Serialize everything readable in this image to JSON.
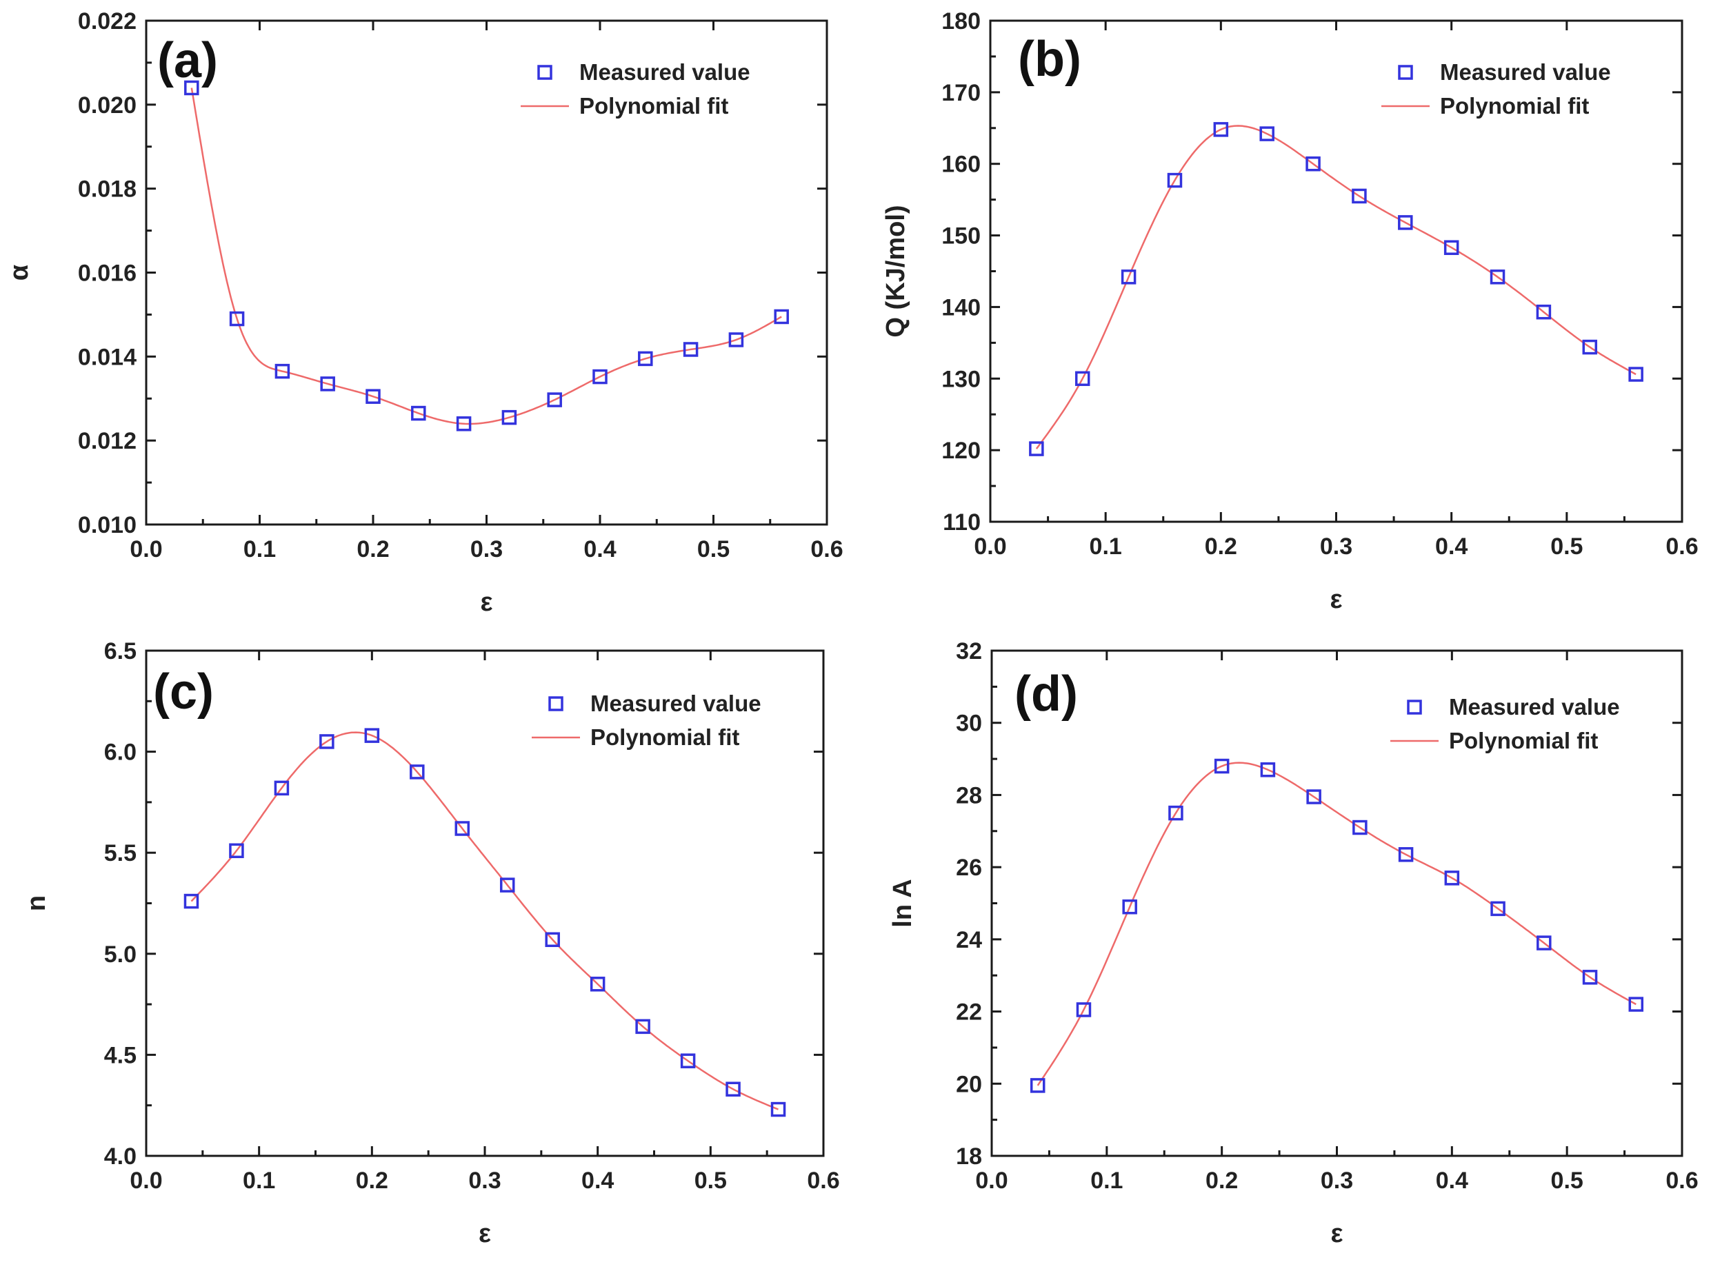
{
  "colors": {
    "marker": "#3333dd",
    "fit": "#ee6a6a",
    "axis": "#1a1a1a"
  },
  "legend": {
    "measured": "Measured value",
    "fit": "Polynomial fit"
  },
  "chart_data": [
    {
      "type": "scatter",
      "panel": "(a)",
      "xlabel": "ε",
      "ylabel": "α",
      "xlim": [
        0.0,
        0.6
      ],
      "ylim": [
        0.01,
        0.022
      ],
      "xticks": [
        "0.0",
        "0.1",
        "0.2",
        "0.3",
        "0.4",
        "0.5",
        "0.6"
      ],
      "yticks": [
        "0.010",
        "0.012",
        "0.014",
        "0.016",
        "0.018",
        "0.020",
        "0.022"
      ],
      "x": [
        0.04,
        0.08,
        0.12,
        0.16,
        0.2,
        0.24,
        0.28,
        0.32,
        0.36,
        0.4,
        0.44,
        0.48,
        0.52,
        0.56
      ],
      "series": [
        {
          "name": "Measured value",
          "values": [
            0.0204,
            0.0149,
            0.01365,
            0.01335,
            0.01305,
            0.01265,
            0.0124,
            0.01255,
            0.01297,
            0.01352,
            0.01395,
            0.01417,
            0.0144,
            0.01495
          ]
        },
        {
          "name": "Polynomial fit",
          "values": [
            0.0204,
            0.0149,
            0.01365,
            0.01335,
            0.01305,
            0.01265,
            0.0124,
            0.01255,
            0.01297,
            0.01352,
            0.01395,
            0.01417,
            0.0144,
            0.01495
          ]
        }
      ],
      "legend_position": "top-right"
    },
    {
      "type": "scatter",
      "panel": "(b)",
      "xlabel": "ε",
      "ylabel": "Q (KJ/mol)",
      "xlim": [
        0.0,
        0.6
      ],
      "ylim": [
        110,
        180
      ],
      "xticks": [
        "0.0",
        "0.1",
        "0.2",
        "0.3",
        "0.4",
        "0.5",
        "0.6"
      ],
      "yticks": [
        "110",
        "120",
        "130",
        "140",
        "150",
        "160",
        "170",
        "180"
      ],
      "x": [
        0.04,
        0.08,
        0.12,
        0.16,
        0.2,
        0.24,
        0.28,
        0.32,
        0.36,
        0.4,
        0.44,
        0.48,
        0.52,
        0.56
      ],
      "series": [
        {
          "name": "Measured value",
          "values": [
            120.2,
            130.0,
            144.2,
            157.7,
            164.8,
            164.2,
            160.0,
            155.5,
            151.8,
            148.3,
            144.2,
            139.3,
            134.4,
            130.6
          ]
        },
        {
          "name": "Polynomial fit",
          "values": [
            120.2,
            130.0,
            144.2,
            157.7,
            164.8,
            164.2,
            160.0,
            155.5,
            151.8,
            148.3,
            144.2,
            139.3,
            134.4,
            130.6
          ]
        }
      ],
      "legend_position": "top-right"
    },
    {
      "type": "scatter",
      "panel": "(c)",
      "xlabel": "ε",
      "ylabel": "n",
      "xlim": [
        0.0,
        0.6
      ],
      "ylim": [
        4.0,
        6.5
      ],
      "xticks": [
        "0.0",
        "0.1",
        "0.2",
        "0.3",
        "0.4",
        "0.5",
        "0.6"
      ],
      "yticks": [
        "4.0",
        "4.5",
        "5.0",
        "5.5",
        "6.0",
        "6.5"
      ],
      "x": [
        0.04,
        0.08,
        0.12,
        0.16,
        0.2,
        0.24,
        0.28,
        0.32,
        0.36,
        0.4,
        0.44,
        0.48,
        0.52,
        0.56
      ],
      "series": [
        {
          "name": "Measured value",
          "values": [
            5.26,
            5.51,
            5.82,
            6.05,
            6.08,
            5.9,
            5.62,
            5.34,
            5.07,
            4.85,
            4.64,
            4.47,
            4.33,
            4.23
          ]
        },
        {
          "name": "Polynomial fit",
          "values": [
            5.26,
            5.51,
            5.82,
            6.05,
            6.08,
            5.9,
            5.62,
            5.34,
            5.07,
            4.85,
            4.64,
            4.47,
            4.33,
            4.23
          ]
        }
      ],
      "legend_position": "top-right"
    },
    {
      "type": "scatter",
      "panel": "(d)",
      "xlabel": "ε",
      "ylabel": "ln A",
      "xlim": [
        0.0,
        0.6
      ],
      "ylim": [
        18,
        32
      ],
      "xticks": [
        "0.0",
        "0.1",
        "0.2",
        "0.3",
        "0.4",
        "0.5",
        "0.6"
      ],
      "yticks": [
        "18",
        "20",
        "22",
        "24",
        "26",
        "28",
        "30",
        "32"
      ],
      "x": [
        0.04,
        0.08,
        0.12,
        0.16,
        0.2,
        0.24,
        0.28,
        0.32,
        0.36,
        0.4,
        0.44,
        0.48,
        0.52,
        0.56
      ],
      "series": [
        {
          "name": "Measured value",
          "values": [
            19.95,
            22.05,
            24.9,
            27.5,
            28.8,
            28.7,
            27.95,
            27.1,
            26.35,
            25.7,
            24.85,
            23.9,
            22.95,
            22.2
          ]
        },
        {
          "name": "Polynomial fit",
          "values": [
            19.95,
            22.05,
            24.9,
            27.5,
            28.8,
            28.7,
            27.95,
            27.1,
            26.35,
            25.7,
            24.85,
            23.9,
            22.95,
            22.2
          ]
        }
      ],
      "legend_position": "top-right"
    }
  ]
}
